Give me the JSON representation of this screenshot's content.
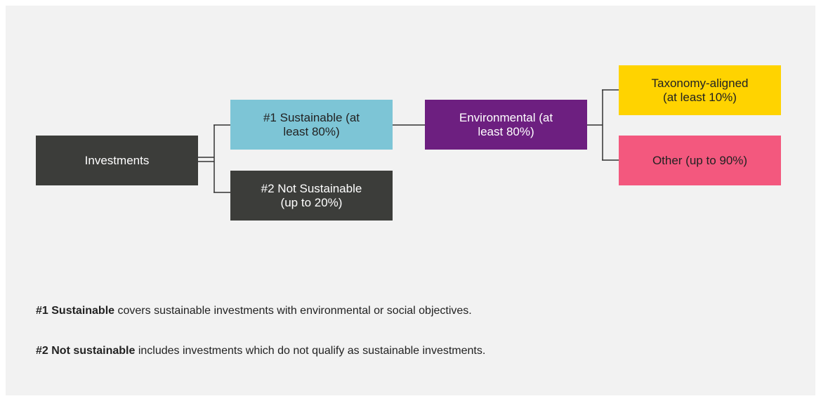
{
  "nodes": [
    {
      "lines": [
        "Investments"
      ]
    },
    {
      "lines": [
        "#1 Sustainable (at",
        "least 80%)"
      ]
    },
    {
      "lines": [
        "#2 Not Sustainable",
        "(up to 20%)"
      ]
    },
    {
      "lines": [
        "Environmental (at",
        "least 80%)"
      ]
    },
    {
      "lines": [
        "Taxonomy-aligned",
        "(at least 10%)"
      ]
    },
    {
      "lines": [
        "Other (up to 90%)"
      ]
    }
  ],
  "notes": [
    {
      "bold": "#1 Sustainable",
      "text": "covers sustainable investments with environmental or social objectives."
    },
    {
      "bold": "#2 Not sustainable",
      "text": "includes investments which do not qualify as sustainable investments."
    }
  ]
}
